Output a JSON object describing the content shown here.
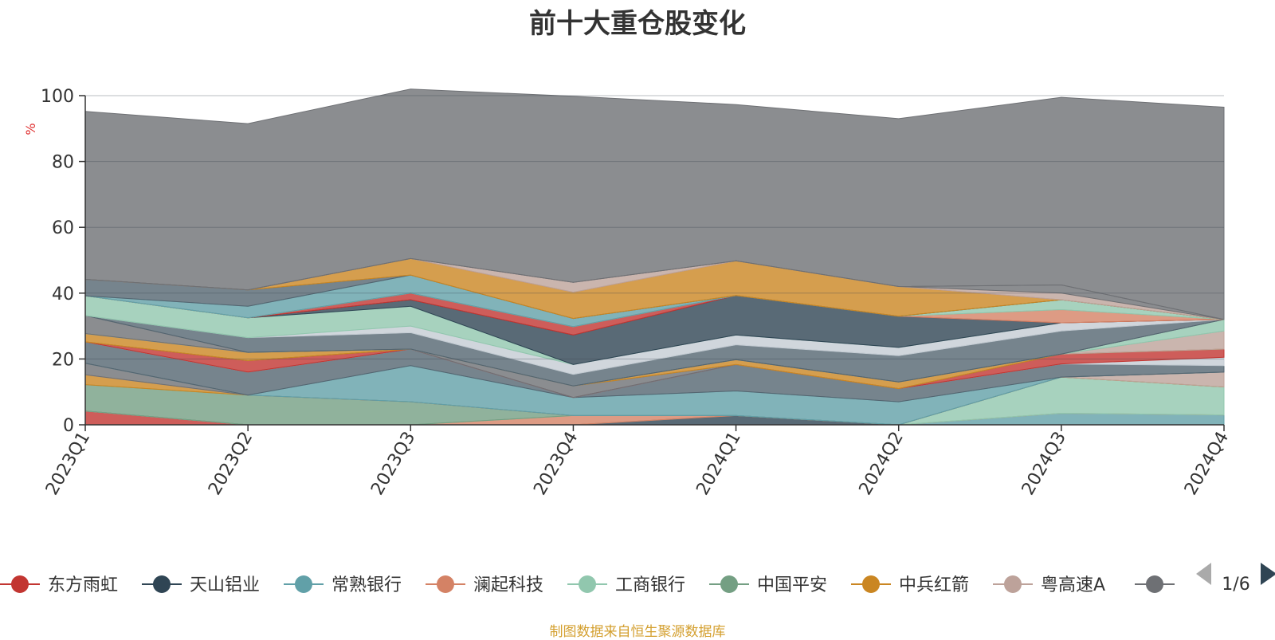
{
  "chart_data": {
    "type": "area",
    "title": "前十大重仓股变化",
    "ylabel": "%",
    "ylim": [
      0,
      100
    ],
    "yticks": [
      0,
      20,
      40,
      60,
      80,
      100
    ],
    "grid": true,
    "categories": [
      "2023Q1",
      "2023Q2",
      "2023Q3",
      "2023Q4",
      "2024Q1",
      "2024Q2",
      "2024Q3",
      "2024Q4"
    ],
    "series": [
      {
        "name": "东方雨虹",
        "color": "#c23531",
        "values": [
          4.2,
          0,
          0,
          0,
          0,
          0,
          0,
          0
        ]
      },
      {
        "name": "天山铝业",
        "color": "#2f4554",
        "values": [
          0,
          0,
          0,
          0,
          2.8,
          0,
          0,
          0
        ]
      },
      {
        "name": "常熟银行",
        "color": "#61a0a8",
        "values": [
          0,
          0,
          0,
          0,
          0,
          0,
          3.5,
          3.0
        ]
      },
      {
        "name": "澜起科技",
        "color": "#d48265",
        "values": [
          0,
          0,
          0,
          2.8,
          0,
          0,
          0,
          0
        ]
      },
      {
        "name": "工商银行",
        "color": "#91c7ae",
        "values": [
          0,
          0,
          0,
          0,
          0,
          0,
          11,
          8.5
        ]
      },
      {
        "name": "中国平安",
        "color": "#749f83",
        "values": [
          8.0,
          9.0,
          7.0,
          0,
          0,
          0,
          0,
          0
        ]
      },
      {
        "name": "中兵红箭",
        "color": "#ca8622",
        "values": [
          3.0,
          0,
          0,
          0,
          0,
          0,
          0,
          0
        ]
      },
      {
        "name": "粤高速A",
        "color": "#bda29a",
        "values": [
          0,
          0,
          0,
          0,
          0,
          0,
          0,
          4.5
        ]
      },
      {
        "name": "",
        "color": "#6e7074",
        "values": [
          3.5,
          0,
          0,
          0,
          0,
          0,
          0,
          0
        ]
      },
      {
        "name": "",
        "color": "#61a0a8",
        "values": [
          0,
          0,
          11,
          5.5,
          7.5,
          7.0,
          0,
          0
        ]
      },
      {
        "name": "",
        "color": "#546570",
        "values": [
          6.5,
          7.0,
          5.0,
          0,
          8.0,
          4.0,
          4.0,
          2.0
        ]
      },
      {
        "name": "",
        "color": "#c4ccd3",
        "values": [
          0,
          0,
          0,
          0,
          0,
          0,
          0,
          2.5
        ]
      },
      {
        "name": "",
        "color": "#c23531",
        "values": [
          0,
          3.5,
          0,
          0,
          0,
          0,
          3.0,
          2.5
        ]
      },
      {
        "name": "",
        "color": "#6e7074",
        "values": [
          0,
          0,
          0,
          3.5,
          0,
          0,
          0,
          0
        ]
      },
      {
        "name": "",
        "color": "#ca8622",
        "values": [
          2.5,
          2.5,
          0,
          0,
          1.5,
          2.0,
          0,
          0
        ]
      },
      {
        "name": "",
        "color": "#bda29a",
        "values": [
          0,
          0,
          0,
          0,
          0,
          0,
          0,
          5.5
        ]
      },
      {
        "name": "",
        "color": "#91c7ae",
        "values": [
          0,
          0,
          0,
          0,
          0,
          0,
          0,
          3.5
        ]
      },
      {
        "name": "",
        "color": "#6e7074",
        "values": [
          5.5,
          0,
          0,
          0,
          0,
          0,
          0,
          0
        ]
      },
      {
        "name": "",
        "color": "#546570",
        "values": [
          0,
          4.5,
          5.0,
          3.5,
          4.5,
          8.0,
          7.0,
          0
        ]
      },
      {
        "name": "",
        "color": "#c4ccd3",
        "values": [
          0,
          0,
          2.0,
          3.0,
          3.0,
          2.5,
          2.5,
          0
        ]
      },
      {
        "name": "",
        "color": "#91c7ae",
        "values": [
          6.0,
          6.0,
          6.0,
          0,
          0,
          0,
          0,
          0
        ]
      },
      {
        "name": "",
        "color": "#2f4554",
        "values": [
          0,
          0,
          2.0,
          9.0,
          12,
          9.5,
          0,
          0
        ]
      },
      {
        "name": "",
        "color": "#c23531",
        "values": [
          0,
          0,
          2.0,
          2.5,
          0,
          0,
          0,
          0
        ]
      },
      {
        "name": "",
        "color": "#d48265",
        "values": [
          0,
          0,
          0,
          0,
          0,
          0,
          4.0,
          0
        ]
      },
      {
        "name": "",
        "color": "#91c7ae",
        "values": [
          0,
          0,
          0,
          0,
          0,
          0,
          3.0,
          0
        ]
      },
      {
        "name": "",
        "color": "#61a0a8",
        "values": [
          0,
          3.5,
          5.5,
          2.5,
          0,
          0,
          0,
          0
        ]
      },
      {
        "name": "",
        "color": "#546570",
        "values": [
          5.0,
          5.0,
          0,
          0,
          0,
          0,
          0,
          0
        ]
      },
      {
        "name": "",
        "color": "#ca8622",
        "values": [
          0,
          0,
          5.0,
          8.0,
          10.5,
          9.0,
          0,
          0
        ]
      },
      {
        "name": "",
        "color": "#bda29a",
        "values": [
          0,
          0,
          0,
          3.0,
          0,
          0,
          2.0,
          0
        ]
      },
      {
        "name": "",
        "color": "#6e7074",
        "values": [
          0,
          0,
          0,
          0,
          0,
          0,
          2.5,
          0
        ]
      },
      {
        "name": "",
        "color": "#6e7074",
        "values": [
          51,
          50.5,
          51.5,
          56.5,
          47.5,
          51,
          57,
          64.5
        ]
      }
    ],
    "legend": {
      "position": "bottom",
      "items": [
        {
          "name": "东方雨虹",
          "color": "#c23531"
        },
        {
          "name": "天山铝业",
          "color": "#2f4554"
        },
        {
          "name": "常熟银行",
          "color": "#61a0a8"
        },
        {
          "name": "澜起科技",
          "color": "#d48265"
        },
        {
          "name": "工商银行",
          "color": "#91c7ae"
        },
        {
          "name": "中国平安",
          "color": "#749f83"
        },
        {
          "name": "中兵红箭",
          "color": "#ca8622"
        },
        {
          "name": "粤高速A",
          "color": "#bda29a"
        }
      ],
      "partial_item_color": "#6e7074",
      "page": "1/6"
    },
    "footnote": "制图数据来自恒生聚源数据库"
  }
}
